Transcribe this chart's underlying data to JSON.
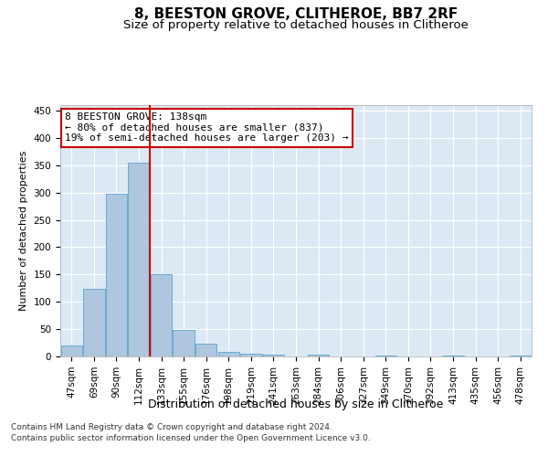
{
  "title": "8, BEESTON GROVE, CLITHEROE, BB7 2RF",
  "subtitle": "Size of property relative to detached houses in Clitheroe",
  "xlabel": "Distribution of detached houses by size in Clitheroe",
  "ylabel": "Number of detached properties",
  "footnote1": "Contains HM Land Registry data © Crown copyright and database right 2024.",
  "footnote2": "Contains public sector information licensed under the Open Government Licence v3.0.",
  "bar_labels": [
    "47sqm",
    "69sqm",
    "90sqm",
    "112sqm",
    "133sqm",
    "155sqm",
    "176sqm",
    "198sqm",
    "219sqm",
    "241sqm",
    "263sqm",
    "284sqm",
    "306sqm",
    "327sqm",
    "349sqm",
    "370sqm",
    "392sqm",
    "413sqm",
    "435sqm",
    "456sqm",
    "478sqm"
  ],
  "bar_values": [
    20,
    123,
    298,
    354,
    150,
    48,
    24,
    8,
    5,
    4,
    0,
    3,
    0,
    0,
    2,
    0,
    0,
    1,
    0,
    0,
    1
  ],
  "bar_color": "#aec6de",
  "bar_edge_color": "#6aaad4",
  "background_color": "#dce9f5",
  "grid_color": "#ffffff",
  "annotation_line1": "8 BEESTON GROVE: 138sqm",
  "annotation_line2": "← 80% of detached houses are smaller (837)",
  "annotation_line3": "19% of semi-detached houses are larger (203) →",
  "annotation_box_facecolor": "#ffffff",
  "annotation_box_edgecolor": "#cc0000",
  "vline_color": "#cc0000",
  "vline_x": 3.5,
  "ylim": [
    0,
    460
  ],
  "yticks": [
    0,
    50,
    100,
    150,
    200,
    250,
    300,
    350,
    400,
    450
  ],
  "title_fontsize": 11,
  "subtitle_fontsize": 9.5,
  "xlabel_fontsize": 9,
  "ylabel_fontsize": 8,
  "tick_fontsize": 7.5,
  "annotation_fontsize": 8,
  "footnote_fontsize": 6.5
}
